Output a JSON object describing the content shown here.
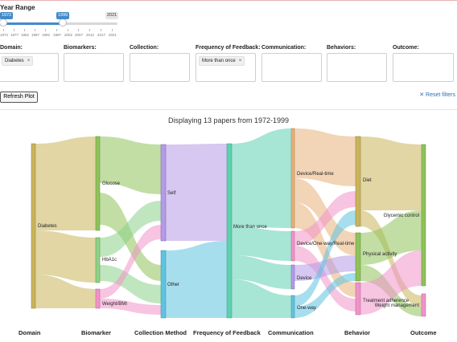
{
  "year_range": {
    "title": "Year Range",
    "min_label": "1972",
    "selected_from": "1972",
    "selected_to": "1999",
    "max_label": "2021",
    "ticks": [
      "1972",
      "1977",
      "1982",
      "1987",
      "1992",
      "1997",
      "2002",
      "2007",
      "2012",
      "2017",
      "2021"
    ]
  },
  "filters": [
    {
      "label": "Domain:",
      "chip": "Diabetes",
      "chip_close": "×"
    },
    {
      "label": "Biomarkers:",
      "chip": null,
      "chip_close": null
    },
    {
      "label": "Collection:",
      "chip": null,
      "chip_close": null
    },
    {
      "label": "Frequency of Feedback:",
      "chip": "More than once",
      "chip_close": "×"
    },
    {
      "label": "Communication:",
      "chip": null,
      "chip_close": null
    },
    {
      "label": "Behaviors:",
      "chip": null,
      "chip_close": null
    },
    {
      "label": "Outcome:",
      "chip": null,
      "chip_close": null
    }
  ],
  "refresh_label": "Refresh Plot",
  "reset_label": "✕ Reset filters",
  "chart_title": "Displaying 13 papers from 1972-1999",
  "axis_labels": [
    "Domain",
    "Biomarker",
    "Collection Method",
    "Frequency of Feedback",
    "Communication",
    "Behavior",
    "Outcome"
  ],
  "sankey": {
    "nodes": [
      {
        "label": "Diabetes",
        "color": "#c9b45a"
      },
      {
        "label": "Glucose",
        "color": "#8fc25a"
      },
      {
        "label": "HbA1c",
        "color": "#8dd28a"
      },
      {
        "label": "Weight/BMI",
        "color": "#f093c8"
      },
      {
        "label": "Self",
        "color": "#b49be6"
      },
      {
        "label": "Other",
        "color": "#5ec3e0"
      },
      {
        "label": "More than once",
        "color": "#5fd0b0"
      },
      {
        "label": "Device/Real-time",
        "color": "#e8b07a"
      },
      {
        "label": "Device/One-way/Real-time",
        "color": "#f093c8"
      },
      {
        "label": "Device",
        "color": "#b49be6"
      },
      {
        "label": "One-way",
        "color": "#5ec3e0"
      },
      {
        "label": "Diet",
        "color": "#c9b45a"
      },
      {
        "label": "Physical activity",
        "color": "#8fc25a"
      },
      {
        "label": "Treatment adherence",
        "color": "#f093c8"
      },
      {
        "label": "Glycemic control",
        "color": "#8fc25a"
      },
      {
        "label": "Weight management",
        "color": "#f093c8"
      }
    ]
  }
}
